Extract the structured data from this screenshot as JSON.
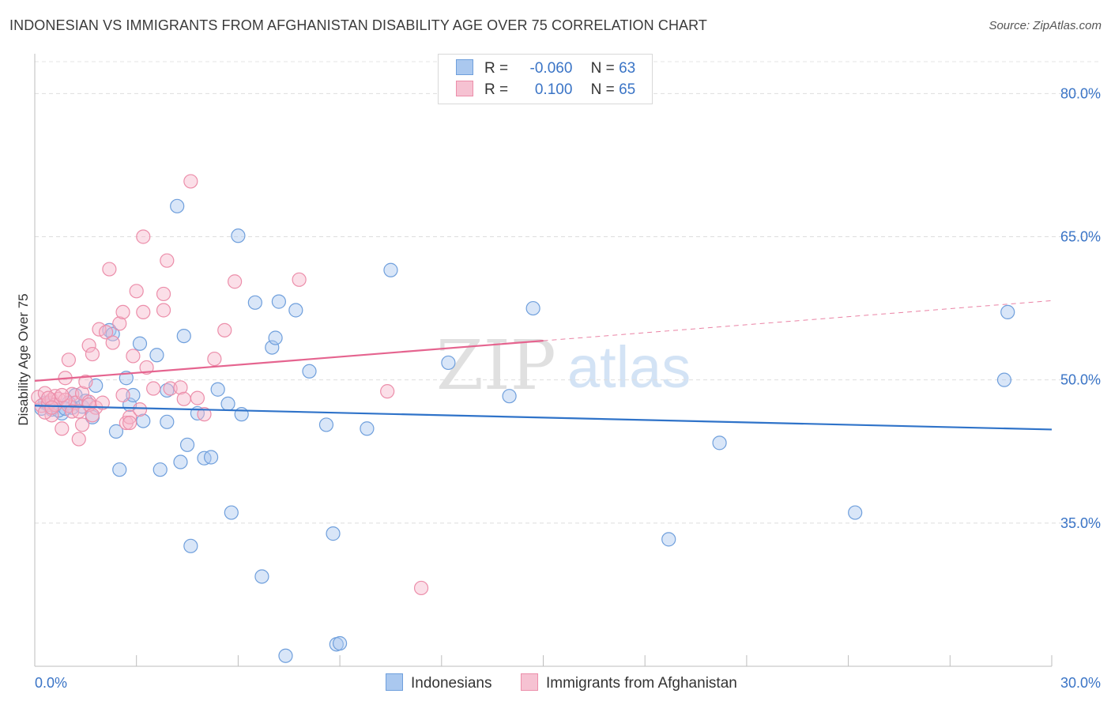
{
  "chart_data": {
    "type": "scatter",
    "title": "INDONESIAN VS IMMIGRANTS FROM AFGHANISTAN DISABILITY AGE OVER 75 CORRELATION CHART",
    "source": "Source: ZipAtlas.com",
    "watermark_zip": "ZIP",
    "watermark_atlas": "atlas",
    "ylabel": "Disability Age Over 75",
    "xlim": [
      0,
      30
    ],
    "ylim": [
      20,
      84
    ],
    "x_tick_labels": [
      "0.0%",
      "30.0%"
    ],
    "y_ticks": [
      35,
      50,
      65,
      80
    ],
    "y_tick_labels": [
      "35.0%",
      "50.0%",
      "65.0%",
      "80.0%"
    ],
    "colors": {
      "blue_fill": "#aac8ef",
      "blue_stroke": "#6f9fdc",
      "blue_line": "#2f73c9",
      "pink_fill": "#f6b9cc",
      "pink_stroke": "#ec8eaa",
      "pink_line": "#e5648f"
    },
    "legend": {
      "r_label": "R =",
      "n_label": "N =",
      "rows": [
        {
          "series": "blue",
          "r": "-0.060",
          "n": "63"
        },
        {
          "series": "pink",
          "r": "0.100",
          "n": "65"
        }
      ]
    },
    "series": [
      {
        "name": "Indonesians",
        "color": "blue",
        "trend": {
          "x0": 0,
          "y0": 47.3,
          "x1": 30,
          "y1": 44.8
        },
        "points": [
          [
            0.3,
            47.6
          ],
          [
            0.5,
            46.9
          ],
          [
            0.6,
            47.3
          ],
          [
            0.8,
            46.5
          ],
          [
            1.1,
            47.1
          ],
          [
            1.2,
            48.4
          ],
          [
            1.7,
            46.1
          ],
          [
            1.8,
            49.4
          ],
          [
            2.2,
            55.2
          ],
          [
            2.3,
            54.8
          ],
          [
            2.4,
            44.6
          ],
          [
            2.5,
            40.6
          ],
          [
            2.7,
            50.2
          ],
          [
            2.8,
            47.4
          ],
          [
            2.9,
            48.4
          ],
          [
            3.1,
            53.8
          ],
          [
            3.2,
            45.7
          ],
          [
            3.6,
            52.6
          ],
          [
            3.7,
            40.6
          ],
          [
            3.9,
            45.6
          ],
          [
            3.9,
            48.9
          ],
          [
            4.2,
            68.2
          ],
          [
            4.3,
            41.4
          ],
          [
            4.4,
            54.6
          ],
          [
            4.5,
            43.2
          ],
          [
            4.6,
            32.6
          ],
          [
            4.8,
            46.5
          ],
          [
            5.0,
            41.8
          ],
          [
            5.2,
            41.9
          ],
          [
            5.4,
            49.0
          ],
          [
            5.7,
            47.5
          ],
          [
            5.8,
            36.1
          ],
          [
            6.0,
            65.1
          ],
          [
            6.1,
            46.4
          ],
          [
            6.5,
            58.1
          ],
          [
            6.7,
            29.4
          ],
          [
            7.0,
            53.4
          ],
          [
            7.1,
            54.4
          ],
          [
            7.2,
            58.2
          ],
          [
            7.4,
            21.1
          ],
          [
            7.7,
            57.3
          ],
          [
            8.1,
            50.9
          ],
          [
            8.6,
            45.3
          ],
          [
            8.8,
            33.9
          ],
          [
            8.9,
            22.3
          ],
          [
            9.0,
            22.4
          ],
          [
            9.8,
            44.9
          ],
          [
            10.5,
            61.5
          ],
          [
            12.2,
            51.8
          ],
          [
            14.0,
            48.3
          ],
          [
            14.7,
            57.5
          ],
          [
            18.7,
            33.3
          ],
          [
            20.2,
            43.4
          ],
          [
            24.2,
            36.1
          ],
          [
            28.6,
            50.0
          ],
          [
            28.7,
            57.1
          ],
          [
            0.2,
            47.0
          ],
          [
            0.4,
            47.4
          ],
          [
            0.7,
            46.8
          ],
          [
            1.0,
            47.6
          ],
          [
            1.4,
            47.2
          ],
          [
            1.5,
            47.8
          ],
          [
            0.9,
            47.0
          ]
        ]
      },
      {
        "name": "Immigrants from Afghanistan",
        "color": "pink",
        "trend": {
          "x0": 0,
          "y0": 49.9,
          "x1": 15,
          "y1": 54.1,
          "x2": 30,
          "y2": 58.3
        },
        "points": [
          [
            0.1,
            48.2
          ],
          [
            0.2,
            47.3
          ],
          [
            0.3,
            48.6
          ],
          [
            0.4,
            47.6
          ],
          [
            0.5,
            47.9
          ],
          [
            0.5,
            46.3
          ],
          [
            0.6,
            48.3
          ],
          [
            0.7,
            48.0
          ],
          [
            0.8,
            44.9
          ],
          [
            0.9,
            50.2
          ],
          [
            1.0,
            47.3
          ],
          [
            1.0,
            52.1
          ],
          [
            1.1,
            48.5
          ],
          [
            1.2,
            47.6
          ],
          [
            1.3,
            43.8
          ],
          [
            1.4,
            45.3
          ],
          [
            1.4,
            48.6
          ],
          [
            1.5,
            49.8
          ],
          [
            1.6,
            53.6
          ],
          [
            1.6,
            47.7
          ],
          [
            1.7,
            52.7
          ],
          [
            1.8,
            47.1
          ],
          [
            1.9,
            55.3
          ],
          [
            2.1,
            55.0
          ],
          [
            2.2,
            61.6
          ],
          [
            2.3,
            53.9
          ],
          [
            2.5,
            55.9
          ],
          [
            2.6,
            57.1
          ],
          [
            2.6,
            48.4
          ],
          [
            2.7,
            45.5
          ],
          [
            2.8,
            46.1
          ],
          [
            2.9,
            52.5
          ],
          [
            3.0,
            59.3
          ],
          [
            3.1,
            46.9
          ],
          [
            3.2,
            57.1
          ],
          [
            3.2,
            65.0
          ],
          [
            3.3,
            51.3
          ],
          [
            3.5,
            49.1
          ],
          [
            3.8,
            57.3
          ],
          [
            3.8,
            59.0
          ],
          [
            3.9,
            62.5
          ],
          [
            4.0,
            49.1
          ],
          [
            4.3,
            49.2
          ],
          [
            4.4,
            48.0
          ],
          [
            4.6,
            70.8
          ],
          [
            4.8,
            48.1
          ],
          [
            5.0,
            46.4
          ],
          [
            5.3,
            52.2
          ],
          [
            5.6,
            55.2
          ],
          [
            5.9,
            60.3
          ],
          [
            7.8,
            60.5
          ],
          [
            10.4,
            48.8
          ],
          [
            11.4,
            28.2
          ],
          [
            2.8,
            45.5
          ],
          [
            0.3,
            46.6
          ],
          [
            0.6,
            47.4
          ],
          [
            0.9,
            47.9
          ],
          [
            1.1,
            46.7
          ],
          [
            1.6,
            47.4
          ],
          [
            2.0,
            47.6
          ],
          [
            0.4,
            48.1
          ],
          [
            0.8,
            48.4
          ],
          [
            1.3,
            46.7
          ],
          [
            0.5,
            47.1
          ],
          [
            1.7,
            46.3
          ]
        ]
      }
    ]
  },
  "bottom_legend": {
    "blue_label": "Indonesians",
    "pink_label": "Immigrants from Afghanistan"
  }
}
